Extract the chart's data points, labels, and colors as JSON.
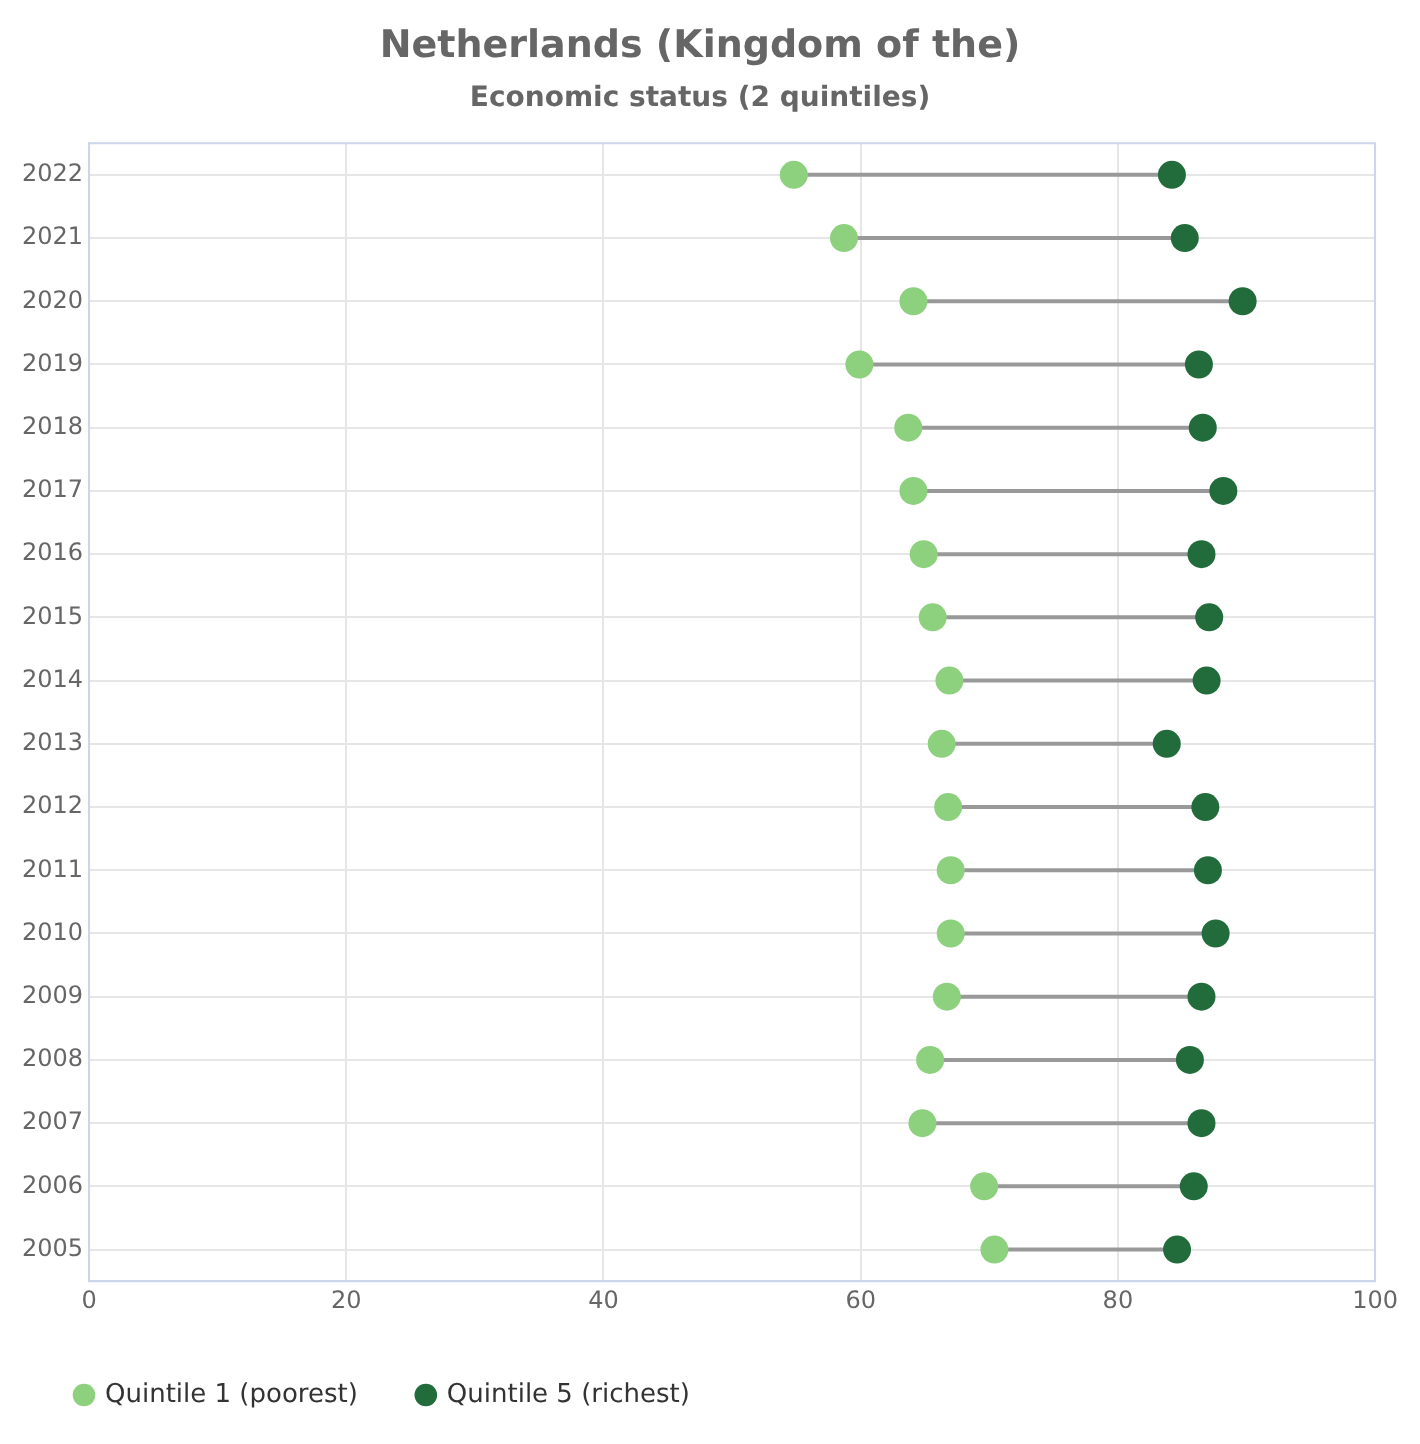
{
  "chart_data": {
    "type": "scatter",
    "orientation": "horizontal",
    "title": "Netherlands (Kingdom of the)",
    "subtitle": "Economic status (2 quintiles)",
    "categories": [
      "2022",
      "2021",
      "2020",
      "2019",
      "2018",
      "2017",
      "2016",
      "2015",
      "2014",
      "2013",
      "2012",
      "2011",
      "2010",
      "2009",
      "2008",
      "2007",
      "2006",
      "2005"
    ],
    "series": [
      {
        "name": "Quintile 1 (poorest)",
        "color": "#8dd17e",
        "values": [
          54.8,
          58.7,
          64.1,
          59.9,
          63.7,
          64.1,
          64.9,
          65.6,
          66.9,
          66.3,
          66.8,
          67.0,
          67.0,
          66.7,
          65.4,
          64.8,
          69.6,
          70.4
        ]
      },
      {
        "name": "Quintile 5 (richest)",
        "color": "#226c3c",
        "values": [
          84.2,
          85.2,
          89.7,
          86.3,
          86.6,
          88.2,
          86.5,
          87.1,
          86.9,
          83.8,
          86.8,
          87.0,
          87.6,
          86.5,
          85.6,
          86.5,
          85.9,
          84.6
        ]
      }
    ],
    "xlim": [
      0,
      100
    ],
    "xticks": [
      0,
      20,
      40,
      60,
      80,
      100
    ],
    "grid": true,
    "legend": "bottom left",
    "marker": "circle"
  }
}
